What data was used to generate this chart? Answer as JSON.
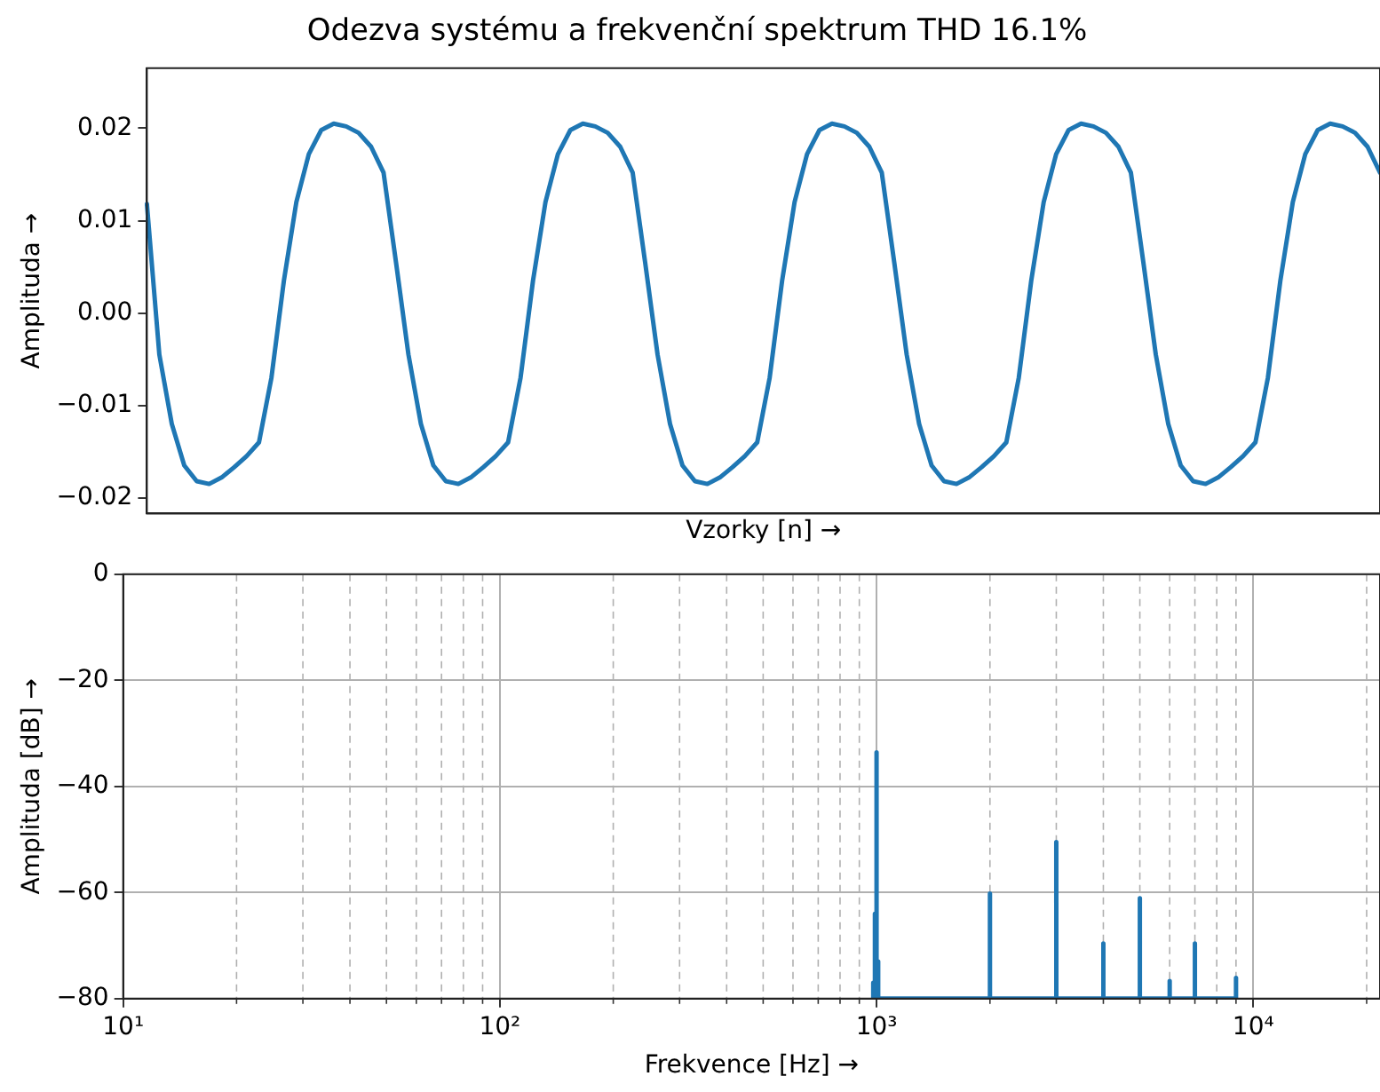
{
  "chart_data": [
    {
      "type": "line",
      "title": "Odezva systému a frekvenční spektrum THD 16.1%",
      "xlabel": "Vzorky [n] →",
      "ylabel": "Amplituda →",
      "tick_labels": "y",
      "marker": "none",
      "line_style": "solid",
      "categories": [
        null,
        null,
        null,
        null,
        null,
        null,
        null,
        null,
        null,
        null,
        null,
        null,
        null,
        null,
        null,
        null,
        null,
        null,
        null,
        null,
        null,
        null,
        null,
        null,
        null,
        null,
        null,
        null,
        null,
        null,
        null,
        null,
        null,
        null,
        null,
        null,
        null,
        null,
        null,
        null,
        null,
        null,
        null,
        null,
        null,
        null,
        null,
        null,
        null,
        null,
        null,
        null,
        null,
        null,
        null,
        null,
        null,
        null,
        null,
        null,
        null,
        null,
        null,
        null,
        null,
        null,
        null,
        null,
        null,
        null,
        null,
        null,
        null,
        null,
        null,
        null,
        null,
        null,
        null,
        null,
        null,
        null,
        null,
        null,
        null,
        null,
        null,
        null,
        null,
        null,
        null,
        null,
        null,
        null,
        null,
        null,
        null,
        null,
        null,
        null
      ],
      "ylim": [
        -0.0217,
        0.0265
      ],
      "yticks": [
        {
          "value": 0.02,
          "label": "0.02"
        },
        {
          "value": 0.01,
          "label": "0.01"
        },
        {
          "value": 0,
          "label": "0.00"
        },
        {
          "value": -0.01,
          "label": "−0.01"
        },
        {
          "value": -0.02,
          "label": "−0.02"
        }
      ],
      "series": [
        {
          "color": "#1f77b4",
          "values": [
            0.0118,
            -0.0045,
            -0.012,
            -0.0165,
            -0.0182,
            -0.0185,
            -0.0178,
            -0.0167,
            -0.0155,
            -0.014,
            -0.007,
            0.0035,
            0.012,
            0.0172,
            0.0198,
            0.0205,
            0.0202,
            0.0195,
            0.018,
            0.0152,
            0.0055,
            -0.0045,
            -0.012,
            -0.0165,
            -0.0182,
            -0.0185,
            -0.0178,
            -0.0167,
            -0.0155,
            -0.014,
            -0.007,
            0.0035,
            0.012,
            0.0172,
            0.0198,
            0.0205,
            0.0202,
            0.0195,
            0.018,
            0.0152,
            0.0055,
            -0.0045,
            -0.012,
            -0.0165,
            -0.0182,
            -0.0185,
            -0.0178,
            -0.0167,
            -0.0155,
            -0.014,
            -0.007,
            0.0035,
            0.012,
            0.0172,
            0.0198,
            0.0205,
            0.0202,
            0.0195,
            0.018,
            0.0152,
            0.0055,
            -0.0045,
            -0.012,
            -0.0165,
            -0.0182,
            -0.0185,
            -0.0178,
            -0.0167,
            -0.0155,
            -0.014,
            -0.007,
            0.0035,
            0.012,
            0.0172,
            0.0198,
            0.0205,
            0.0202,
            0.0195,
            0.018,
            0.0152,
            0.0055,
            -0.0045,
            -0.012,
            -0.0165,
            -0.0182,
            -0.0185,
            -0.0178,
            -0.0167,
            -0.0155,
            -0.014,
            -0.007,
            0.0035,
            0.012,
            0.0172,
            0.0198,
            0.0205,
            0.0202,
            0.0195,
            0.018,
            0.0152
          ]
        }
      ]
    },
    {
      "type": "line",
      "xlabel": "Frekvence [Hz] →",
      "ylabel": "Amplituda [dB] →",
      "log": "x",
      "grid": true,
      "marker": "none",
      "line_style": "solid",
      "xlim": [
        10,
        21700
      ],
      "xticks": [
        {
          "value": 10,
          "label": "10¹"
        },
        {
          "value": 100,
          "label": "10²"
        },
        {
          "value": 1000,
          "label": "10³"
        },
        {
          "value": 10000,
          "label": "10⁴"
        }
      ],
      "ylim": [
        -80,
        0
      ],
      "yticks": [
        0,
        {
          "value": -20,
          "label": "−20"
        },
        {
          "value": -40,
          "label": "−40"
        },
        {
          "value": -60,
          "label": "−60"
        },
        {
          "value": -80,
          "label": "−80"
        }
      ],
      "series": [
        {
          "color": "#1f77b4",
          "x": [
            980,
            980,
            980,
            990,
            990,
            990,
            1000,
            1000,
            1000,
            1010,
            1010,
            1010,
            2000,
            2000,
            2000,
            3000,
            3000,
            3000,
            4000,
            4000,
            4000,
            5000,
            5000,
            5000,
            6000,
            6000,
            6000,
            7000,
            7000,
            7000,
            9000,
            9000,
            9000
          ],
          "values": [
            -80,
            -77,
            -80,
            -80,
            -64,
            -80,
            -80,
            -33.6,
            -80,
            -80,
            -73,
            -80,
            -80,
            -60.2,
            -80,
            -80,
            -50.5,
            -80,
            -80,
            -69.6,
            -80,
            -80,
            -61.1,
            -80,
            -80,
            -76.7,
            -80,
            -80,
            -69.6,
            -80,
            -80,
            -76.1,
            -80
          ]
        }
      ]
    }
  ]
}
